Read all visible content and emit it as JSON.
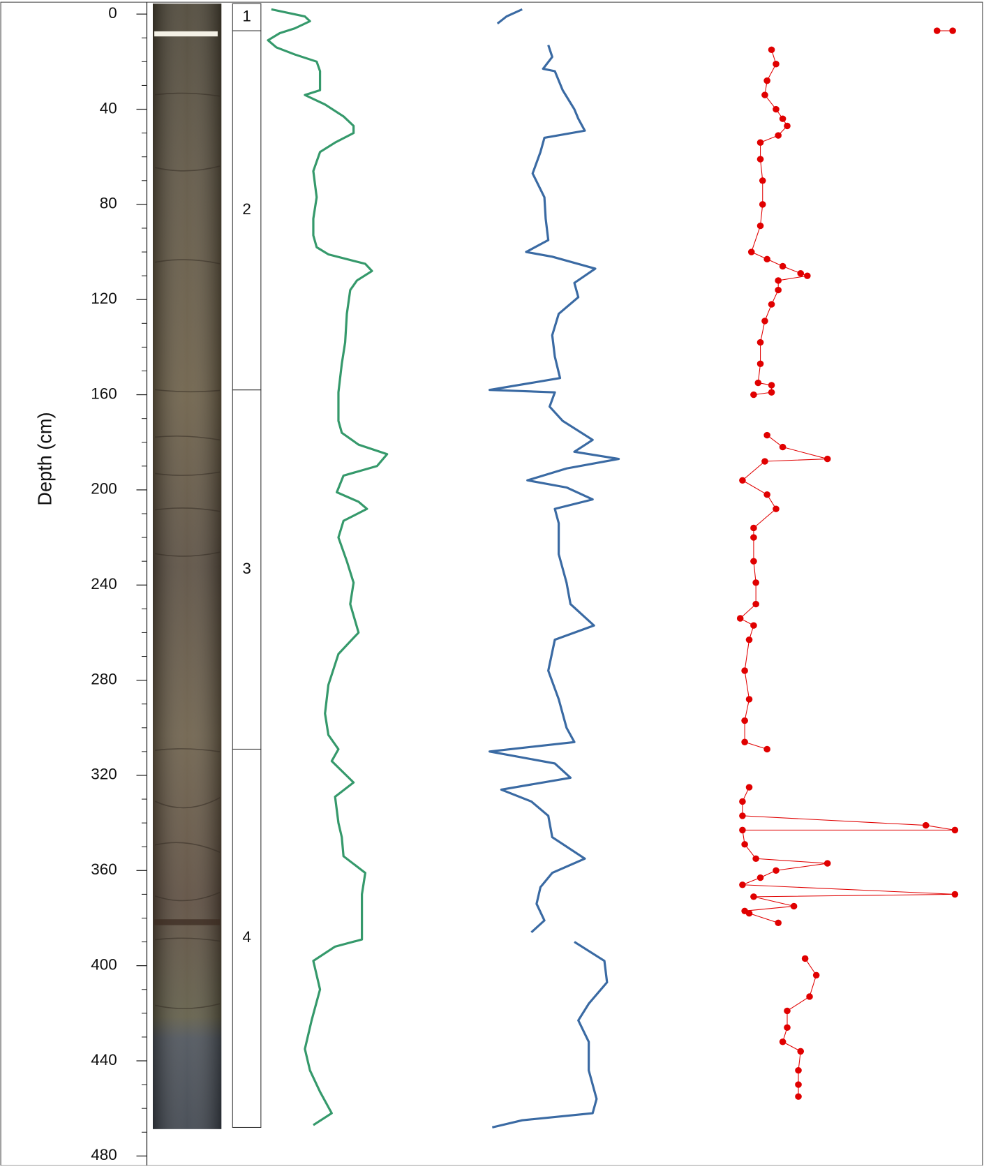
{
  "chart_data": {
    "type": "depth-log",
    "ylabel": "Depth (cm)",
    "ylim": [
      -5,
      484
    ],
    "yticks": [
      0,
      40,
      80,
      120,
      160,
      200,
      240,
      280,
      320,
      360,
      400,
      440,
      480
    ],
    "minor_yticks": [
      10,
      20,
      30,
      50,
      60,
      70,
      90,
      100,
      110,
      130,
      140,
      150,
      170,
      180,
      190,
      210,
      220,
      230,
      250,
      260,
      270,
      290,
      300,
      310,
      330,
      340,
      350,
      370,
      380,
      390,
      410,
      420,
      430,
      450,
      460,
      470
    ],
    "units": [
      {
        "label": "1",
        "top": -5,
        "bottom": 7
      },
      {
        "label": "2",
        "top": 7,
        "bottom": 158
      },
      {
        "label": "3",
        "top": 158,
        "bottom": 309
      },
      {
        "label": "4",
        "top": 309,
        "bottom": 468
      }
    ],
    "series": [
      {
        "color": "#35996b",
        "style": "line",
        "xlim": [
          0,
          100
        ],
        "depth": [
          -2,
          1,
          3,
          6,
          8,
          11,
          14,
          17,
          20,
          24,
          32,
          34,
          38,
          43,
          47,
          50,
          54,
          58,
          66,
          77,
          86,
          93,
          98,
          101,
          105,
          108,
          112,
          116,
          126,
          138,
          147,
          159,
          165,
          171,
          176,
          181,
          185,
          190,
          194,
          201,
          205,
          208,
          213,
          220,
          230,
          239,
          248,
          260,
          269,
          282,
          294,
          303,
          309,
          314,
          323,
          329,
          340,
          346,
          354,
          361,
          370,
          380,
          389,
          392,
          398,
          410,
          423,
          435,
          444,
          453,
          462,
          467
        ],
        "values": [
          4,
          24,
          27,
          18,
          9,
          2,
          7,
          18,
          31,
          33,
          33,
          24,
          36,
          47,
          53,
          53,
          42,
          33,
          29,
          31,
          29,
          29,
          31,
          38,
          60,
          64,
          55,
          51,
          49,
          48,
          46,
          44,
          44,
          44,
          46,
          56,
          73,
          67,
          47,
          43,
          56,
          61,
          47,
          44,
          49,
          53,
          51,
          56,
          44,
          38,
          36,
          38,
          44,
          40,
          53,
          42,
          44,
          46,
          47,
          60,
          58,
          58,
          58,
          42,
          29,
          33,
          28,
          24,
          27,
          33,
          40,
          29
        ]
      },
      {
        "color": "#3a6aa3",
        "style": "line",
        "xlim": [
          0,
          100
        ],
        "depth": [
          -2,
          1,
          4,
          null,
          13,
          18,
          23,
          24,
          32,
          40,
          44,
          49,
          52,
          58,
          67,
          77,
          86,
          95,
          100,
          102,
          107,
          113,
          119,
          126,
          135,
          144,
          153,
          158,
          159,
          165,
          171,
          179,
          184,
          187,
          191,
          196,
          199,
          204,
          208,
          214,
          227,
          239,
          248,
          257,
          263,
          276,
          288,
          300,
          306,
          310,
          315,
          321,
          326,
          331,
          337,
          346,
          355,
          361,
          367,
          374,
          381,
          386,
          null,
          390,
          398,
          407,
          416,
          423,
          432,
          444,
          456,
          462,
          465,
          468
        ],
        "values": [
          26,
          14,
          7,
          null,
          46,
          49,
          42,
          51,
          57,
          66,
          69,
          74,
          43,
          40,
          34,
          43,
          44,
          46,
          29,
          49,
          82,
          66,
          69,
          54,
          49,
          51,
          55,
          1,
          51,
          47,
          57,
          80,
          66,
          100,
          60,
          30,
          60,
          80,
          51,
          54,
          54,
          60,
          63,
          81,
          51,
          46,
          54,
          60,
          66,
          1,
          51,
          63,
          10,
          33,
          46,
          49,
          74,
          49,
          40,
          37,
          43,
          33,
          null,
          66,
          89,
          91,
          77,
          69,
          77,
          77,
          83,
          80,
          26,
          3
        ]
      },
      {
        "color": "#e00000",
        "style": "dots",
        "xlim": [
          0,
          100
        ],
        "depth": [
          7,
          7,
          null,
          15,
          21,
          28,
          34,
          40,
          44,
          47,
          51,
          54,
          61,
          70,
          80,
          89,
          100,
          103,
          106,
          109,
          110,
          112,
          116,
          122,
          129,
          138,
          147,
          155,
          156,
          159,
          160,
          null,
          177,
          182,
          187,
          188,
          196,
          202,
          208,
          216,
          220,
          230,
          239,
          248,
          254,
          257,
          263,
          276,
          288,
          297,
          306,
          309,
          null,
          325,
          331,
          337,
          341,
          343,
          343,
          349,
          355,
          357,
          360,
          363,
          366,
          370,
          371,
          375,
          377,
          378,
          382,
          null,
          397,
          404,
          413,
          419,
          426,
          432,
          436,
          444,
          450,
          455
        ],
        "values": [
          89,
          96,
          null,
          15,
          17,
          13,
          12,
          17,
          20,
          22,
          18,
          10,
          10,
          11,
          11,
          10,
          6,
          13,
          20,
          28,
          31,
          18,
          18,
          15,
          12,
          10,
          10,
          9,
          15,
          15,
          7,
          null,
          13,
          20,
          40,
          12,
          2,
          13,
          17,
          7,
          7,
          7,
          8,
          8,
          1,
          7,
          5,
          3,
          5,
          3,
          3,
          13,
          null,
          5,
          2,
          2,
          84,
          97,
          2,
          3,
          8,
          40,
          17,
          10,
          2,
          97,
          7,
          25,
          3,
          5,
          18,
          null,
          30,
          35,
          32,
          22,
          22,
          20,
          28,
          27,
          27,
          27
        ]
      }
    ]
  }
}
